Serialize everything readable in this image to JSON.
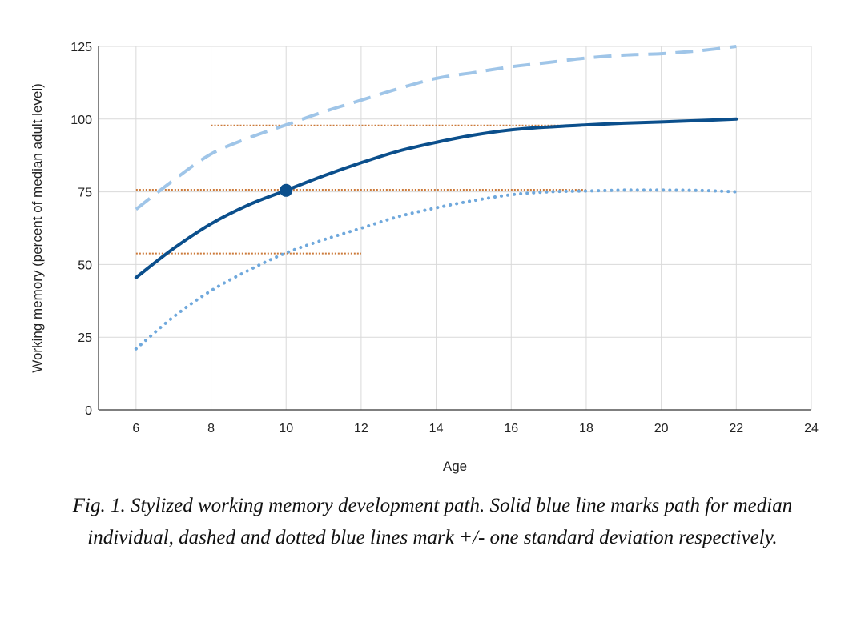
{
  "chart_data": {
    "type": "line",
    "xlabel": "Age",
    "ylabel": "Working memory (percent of median adult level)",
    "xlim": [
      5,
      24
    ],
    "ylim": [
      0,
      125
    ],
    "xticks": [
      6,
      8,
      10,
      12,
      14,
      16,
      18,
      20,
      22,
      24
    ],
    "yticks": [
      0,
      25,
      50,
      75,
      100,
      125
    ],
    "grid": true,
    "series": [
      {
        "name": "+1 standard deviation",
        "style": "dashed",
        "color": "#9fc5e8",
        "x": [
          6,
          7,
          8,
          9,
          10,
          11,
          12,
          13,
          14,
          15,
          16,
          17,
          18,
          19,
          20,
          21,
          22
        ],
        "y": [
          69,
          79,
          88,
          93.5,
          98,
          102.5,
          106.5,
          110.5,
          114,
          116,
          118,
          119.5,
          121,
          122,
          122.5,
          123.5,
          125
        ]
      },
      {
        "name": "Median individual",
        "style": "solid",
        "color": "#0b4f8c",
        "x": [
          6,
          7,
          8,
          9,
          10,
          11,
          12,
          13,
          14,
          15,
          16,
          17,
          18,
          19,
          20,
          21,
          22
        ],
        "y": [
          45.5,
          55.5,
          64,
          70.5,
          75.5,
          80.5,
          85,
          89,
          92,
          94.5,
          96.3,
          97.3,
          98,
          98.6,
          99,
          99.5,
          100
        ]
      },
      {
        "name": "-1 standard deviation",
        "style": "dotted",
        "color": "#6fa8dc",
        "x": [
          6,
          7,
          8,
          9,
          10,
          11,
          12,
          13,
          14,
          15,
          16,
          17,
          18,
          19,
          20,
          21,
          22
        ],
        "y": [
          21,
          32,
          41,
          48,
          54,
          58.5,
          62.5,
          66.5,
          69.5,
          72,
          74,
          75,
          75.3,
          75.6,
          75.6,
          75.5,
          75
        ]
      }
    ],
    "highlight_point": {
      "x": 10,
      "y": 75.5
    },
    "reference_lines": [
      {
        "y": 97.8,
        "x_start": 8,
        "x_end": 18
      },
      {
        "y": 75.7,
        "x_start": 6,
        "x_end": 18
      },
      {
        "y": 53.8,
        "x_start": 6,
        "x_end": 12
      }
    ],
    "reference_color": "#cc7a3a"
  },
  "caption": {
    "text": "Fig. 1.   Stylized working memory development path.   Solid blue line marks path for median individual, dashed and dotted blue lines mark +/- one standard deviation respectively."
  }
}
